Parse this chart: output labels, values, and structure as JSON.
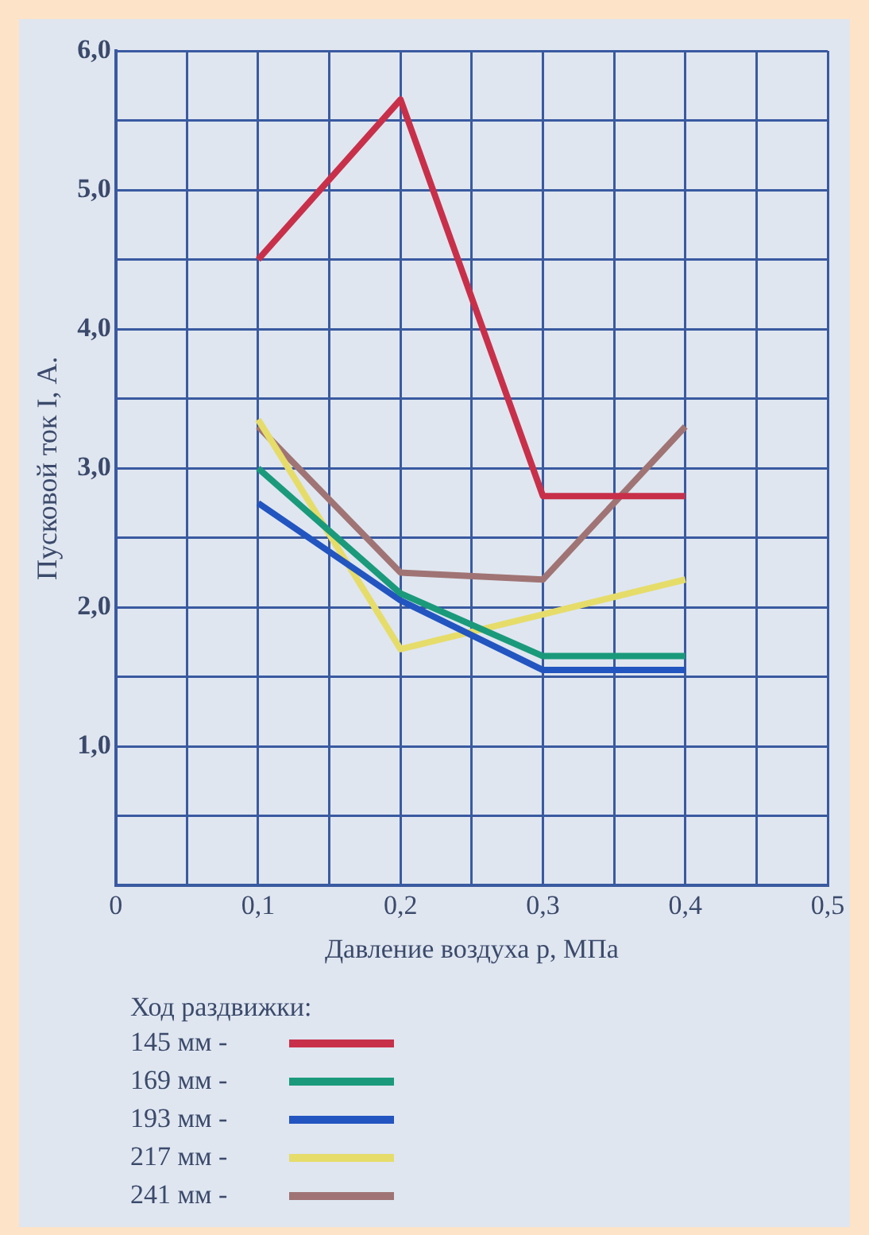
{
  "chart_data": {
    "type": "line",
    "xlabel": "Давление воздуха p, МПа",
    "ylabel": "Пусковой ток I, А.",
    "legend_title": "Ход раздвижки:",
    "x": [
      0.1,
      0.2,
      0.3,
      0.4
    ],
    "series": [
      {
        "name": "145 мм -",
        "color": "#c8304a",
        "values": [
          4.5,
          5.65,
          2.8,
          2.8
        ]
      },
      {
        "name": "169 мм -",
        "color": "#1a9a7a",
        "values": [
          3.0,
          2.1,
          1.65,
          1.65
        ]
      },
      {
        "name": "193 мм -",
        "color": "#2255c0",
        "values": [
          2.75,
          2.05,
          1.55,
          1.55
        ]
      },
      {
        "name": "217 мм -",
        "color": "#e6dc6a",
        "values": [
          3.35,
          1.7,
          1.95,
          2.2
        ]
      },
      {
        "name": "241 мм -",
        "color": "#a07474",
        "values": [
          3.3,
          2.25,
          2.2,
          3.3
        ]
      }
    ],
    "xlim": [
      0,
      0.5
    ],
    "ylim": [
      0,
      6
    ],
    "xticks": [
      {
        "value": 0,
        "label": "0"
      },
      {
        "value": 0.05,
        "label": null
      },
      {
        "value": 0.1,
        "label": "0,1"
      },
      {
        "value": 0.15,
        "label": null
      },
      {
        "value": 0.2,
        "label": "0,2"
      },
      {
        "value": 0.25,
        "label": null
      },
      {
        "value": 0.3,
        "label": "0,3"
      },
      {
        "value": 0.35,
        "label": null
      },
      {
        "value": 0.4,
        "label": "0,4"
      },
      {
        "value": 0.45,
        "label": null
      },
      {
        "value": 0.5,
        "label": "0,5"
      }
    ],
    "yticks": [
      {
        "value": 0,
        "label": null
      },
      {
        "value": 0.5,
        "label": null
      },
      {
        "value": 1,
        "label": "1,0"
      },
      {
        "value": 1.5,
        "label": null
      },
      {
        "value": 2,
        "label": "2,0"
      },
      {
        "value": 2.5,
        "label": null
      },
      {
        "value": 3,
        "label": "3,0"
      },
      {
        "value": 3.5,
        "label": null
      },
      {
        "value": 4,
        "label": "4,0"
      },
      {
        "value": 4.5,
        "label": null
      },
      {
        "value": 5,
        "label": "5,0"
      },
      {
        "value": 5.5,
        "label": null
      },
      {
        "value": 6,
        "label": "6,0"
      }
    ],
    "grid": true,
    "legend": "bottom",
    "marker": "none",
    "line_style": "solid"
  }
}
